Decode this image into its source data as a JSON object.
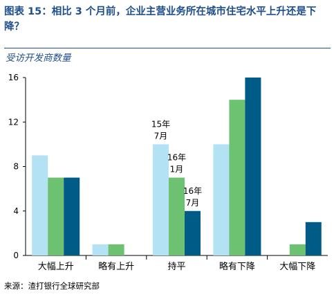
{
  "figure": {
    "title": "图表 15：相比 3 个月前，企业主营业务所在城市住宅水平上升还是下降？",
    "subtitle": "受访开发商数量",
    "source": "来源：渣打银行全球研究部"
  },
  "colors": {
    "title": "#1f4e8c",
    "series": [
      "#b3e2f5",
      "#6cc270",
      "#005b86"
    ]
  },
  "chart_data": {
    "type": "bar",
    "categories": [
      "大幅上升",
      "略有上升",
      "持平",
      "略有下降",
      "大幅下降"
    ],
    "series": [
      {
        "name": "15年7月",
        "values": [
          9,
          1,
          10,
          10,
          0
        ]
      },
      {
        "name": "16年1月",
        "values": [
          7,
          1,
          7,
          14,
          1
        ]
      },
      {
        "name": "16年7月",
        "values": [
          7,
          0,
          4,
          16,
          3
        ]
      }
    ],
    "ylim": [
      0,
      16
    ],
    "yticks": [
      0,
      4,
      8,
      12,
      16
    ],
    "grid": false,
    "legend": "inline-annotations"
  }
}
